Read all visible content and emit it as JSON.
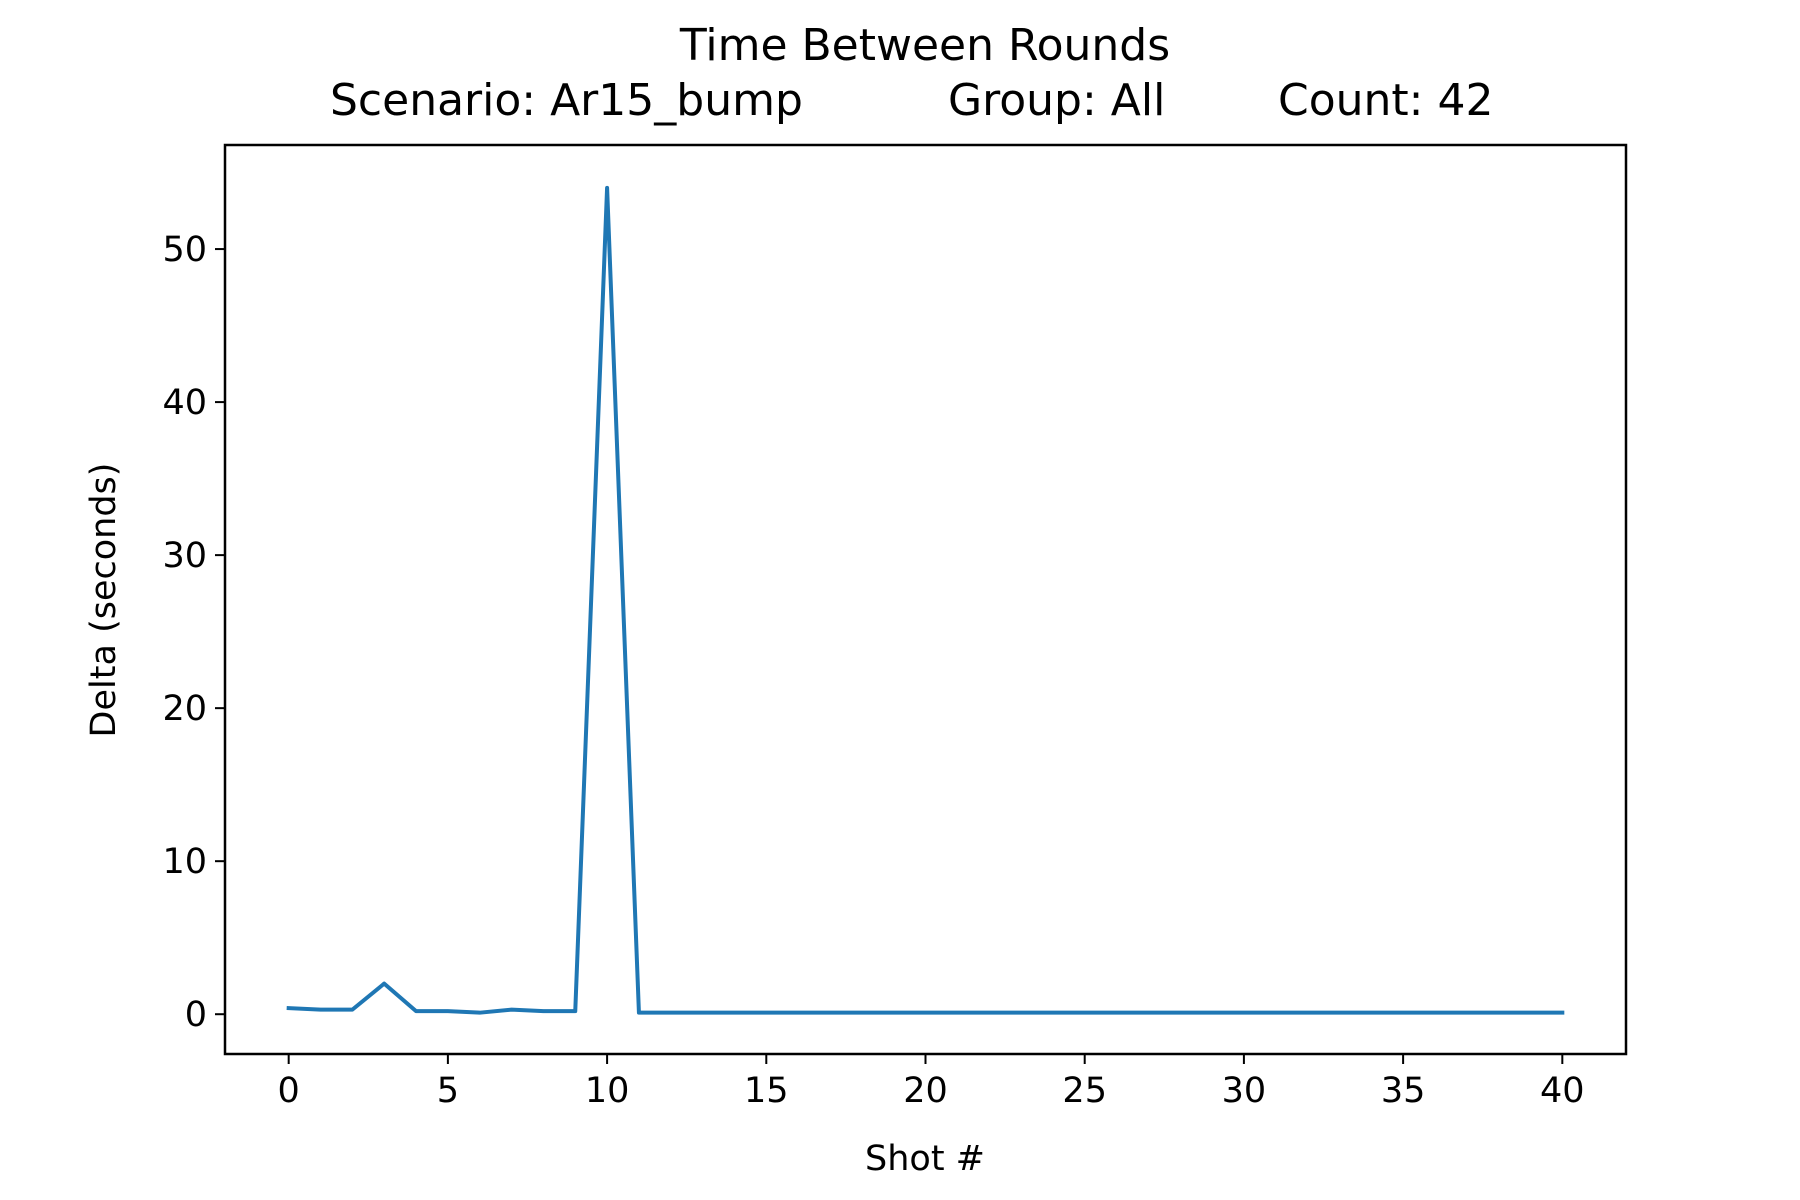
{
  "chart_data": {
    "type": "line",
    "title": "Time Between Rounds",
    "subtitle": {
      "scenario": "Scenario: Ar15_bump",
      "group": "Group: All",
      "count": "Count: 42"
    },
    "xlabel": "Shot #",
    "ylabel": "Delta (seconds)",
    "xlim": [
      -2,
      42
    ],
    "ylim": [
      -2.6,
      56.8
    ],
    "xticks": [
      0,
      5,
      10,
      15,
      20,
      25,
      30,
      35,
      40
    ],
    "yticks": [
      0,
      10,
      20,
      30,
      40,
      50
    ],
    "grid": false,
    "series": [
      {
        "color": "#1f77b4",
        "x": [
          0,
          1,
          2,
          3,
          4,
          5,
          6,
          7,
          8,
          9,
          10,
          11,
          12,
          13,
          14,
          15,
          16,
          17,
          18,
          19,
          20,
          21,
          22,
          23,
          24,
          25,
          26,
          27,
          28,
          29,
          30,
          31,
          32,
          33,
          34,
          35,
          36,
          37,
          38,
          39,
          40
        ],
        "y": [
          0.4,
          0.3,
          0.3,
          2.0,
          0.2,
          0.2,
          0.1,
          0.3,
          0.2,
          0.2,
          54.0,
          0.1,
          0.1,
          0.1,
          0.1,
          0.1,
          0.1,
          0.1,
          0.1,
          0.1,
          0.1,
          0.1,
          0.1,
          0.1,
          0.1,
          0.1,
          0.1,
          0.1,
          0.1,
          0.1,
          0.1,
          0.1,
          0.1,
          0.1,
          0.1,
          0.1,
          0.1,
          0.1,
          0.1,
          0.1,
          0.1
        ]
      }
    ]
  }
}
